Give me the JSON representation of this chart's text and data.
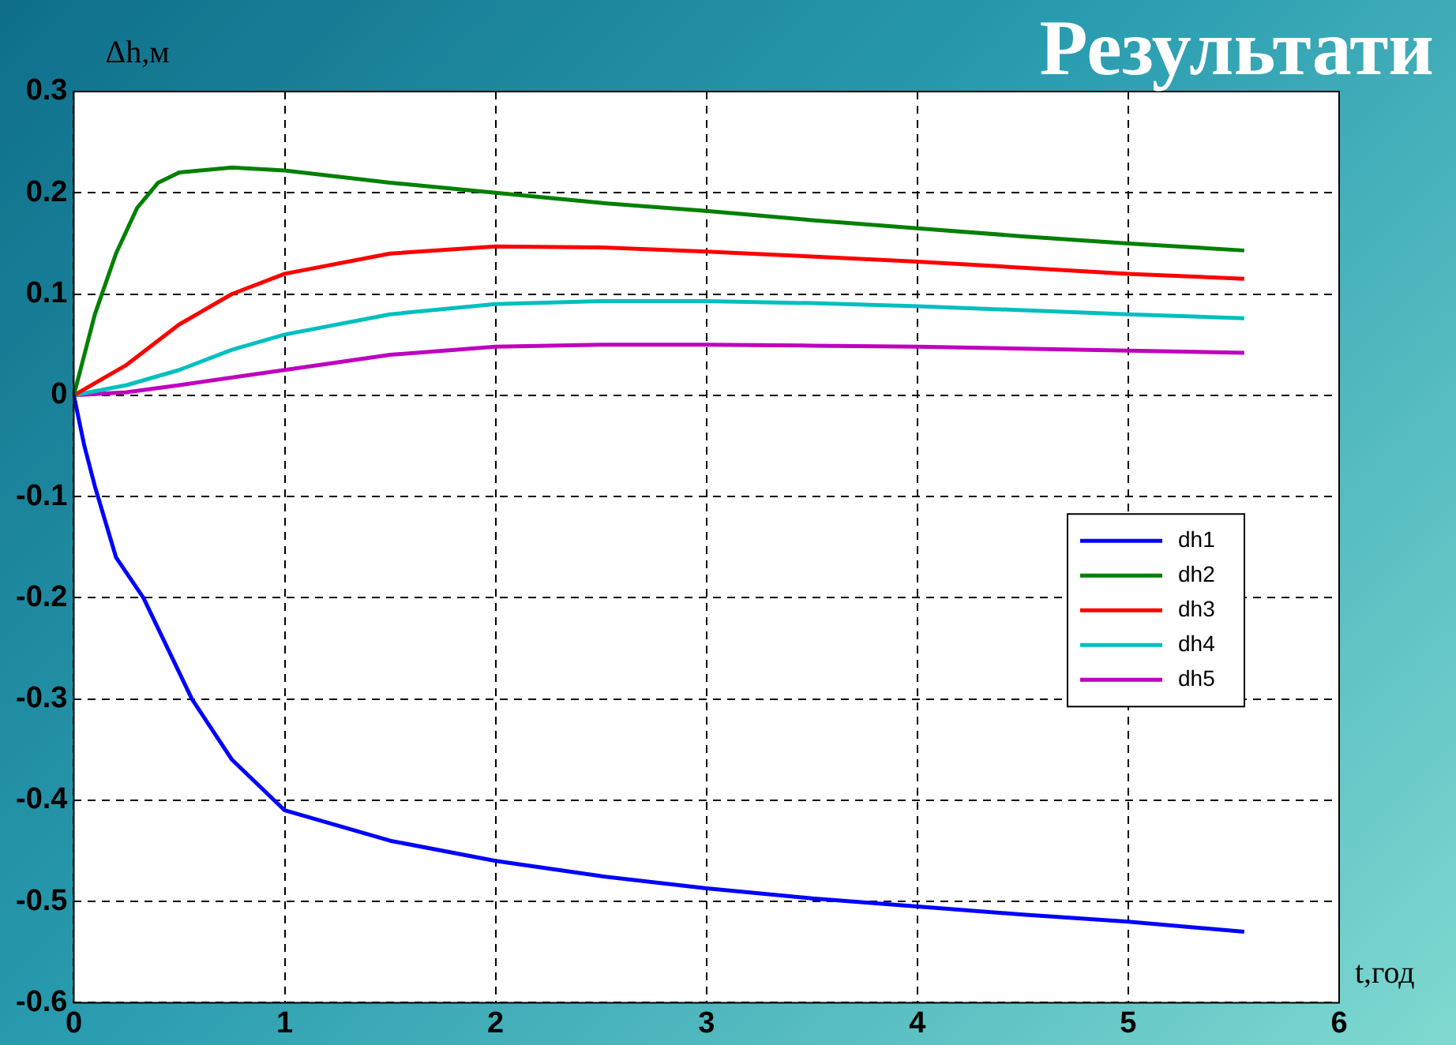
{
  "chart_data": {
    "type": "line",
    "title": "Результати",
    "xlabel": "t,год",
    "ylabel": "Δh,м",
    "xlim": [
      0,
      6
    ],
    "xticks": [
      0,
      1,
      2,
      3,
      4,
      5,
      6
    ],
    "ylim": [
      -0.6,
      0.3
    ],
    "yticks": [
      -0.6,
      -0.5,
      -0.4,
      -0.3,
      -0.2,
      -0.1,
      0,
      0.1,
      0.2,
      0.3
    ],
    "grid": true,
    "legend": "right",
    "line_style": "solid",
    "marker": "none",
    "series": [
      {
        "name": "dh1",
        "color": "#0000ff",
        "x": [
          0,
          0.05,
          0.1,
          0.2,
          0.33,
          0.56,
          0.75,
          1,
          1.5,
          2,
          2.5,
          3,
          3.5,
          4,
          4.5,
          5,
          5.55
        ],
        "values": [
          0,
          -0.05,
          -0.09,
          -0.16,
          -0.2,
          -0.3,
          -0.36,
          -0.41,
          -0.44,
          -0.46,
          -0.475,
          -0.487,
          -0.497,
          -0.505,
          -0.513,
          -0.52,
          -0.53
        ]
      },
      {
        "name": "dh2",
        "color": "#008000",
        "x": [
          0,
          0.1,
          0.2,
          0.3,
          0.4,
          0.5,
          0.75,
          1,
          1.5,
          2,
          2.5,
          3,
          3.5,
          4,
          4.5,
          5,
          5.55
        ],
        "values": [
          0,
          0.08,
          0.14,
          0.185,
          0.21,
          0.22,
          0.225,
          0.222,
          0.21,
          0.2,
          0.19,
          0.182,
          0.173,
          0.165,
          0.157,
          0.15,
          0.143
        ]
      },
      {
        "name": "dh3",
        "color": "#ff0000",
        "x": [
          0,
          0.25,
          0.5,
          0.75,
          1,
          1.5,
          2,
          2.5,
          3,
          3.5,
          4,
          4.5,
          5,
          5.55
        ],
        "values": [
          0,
          0.03,
          0.07,
          0.1,
          0.12,
          0.14,
          0.147,
          0.146,
          0.142,
          0.137,
          0.132,
          0.126,
          0.12,
          0.115
        ]
      },
      {
        "name": "dh4",
        "color": "#00bfbf",
        "x": [
          0,
          0.25,
          0.5,
          0.75,
          1,
          1.5,
          2,
          2.5,
          3,
          3.5,
          4,
          4.5,
          5,
          5.55
        ],
        "values": [
          0,
          0.01,
          0.025,
          0.045,
          0.06,
          0.08,
          0.09,
          0.093,
          0.093,
          0.091,
          0.088,
          0.084,
          0.08,
          0.076
        ]
      },
      {
        "name": "dh5",
        "color": "#bf00bf",
        "x": [
          0,
          0.25,
          0.5,
          1,
          1.5,
          2,
          2.5,
          3,
          3.5,
          4,
          4.5,
          5,
          5.55
        ],
        "values": [
          0,
          0.003,
          0.01,
          0.025,
          0.04,
          0.048,
          0.05,
          0.05,
          0.049,
          0.048,
          0.046,
          0.044,
          0.042
        ]
      }
    ]
  }
}
